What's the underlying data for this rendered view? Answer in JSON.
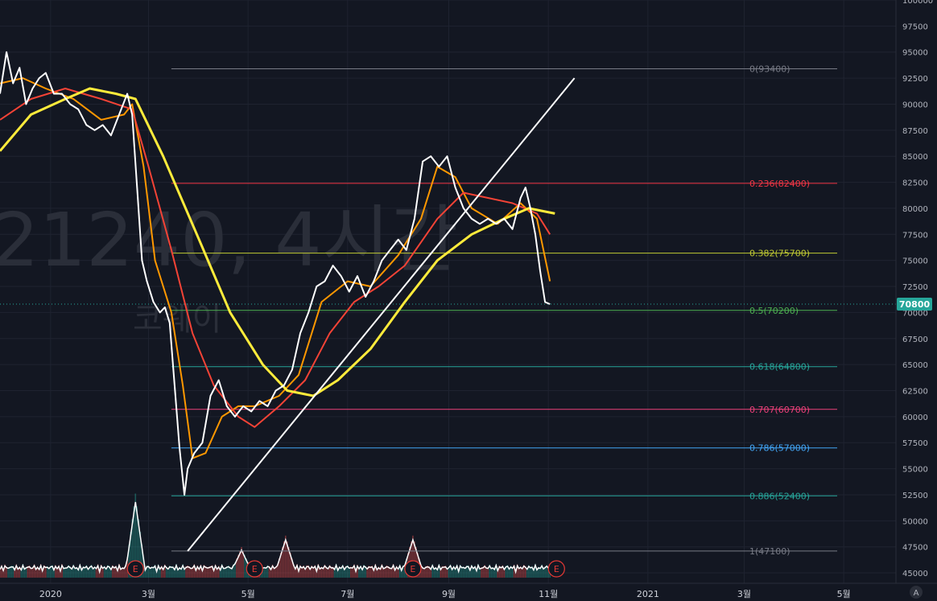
{
  "watermark": {
    "main": "21240, 4시간",
    "sub": "코웨이"
  },
  "price_tag": {
    "value": "70800",
    "color": "#26a69a"
  },
  "corner_button": "A",
  "earnings_marker": "E",
  "colors": {
    "background": "#131722",
    "grid": "#2a2e39",
    "price_line": "#ffffff",
    "ma_short": "#ff9800",
    "ma_mid": "#f44336",
    "ma_long": "#ffeb3b",
    "trendline": "#ffffff",
    "volume_up": "#ef5350",
    "volume_down": "#26a69a"
  },
  "chart_data": {
    "type": "line",
    "ylim": [
      44000,
      100000
    ],
    "y_ticks": [
      45000,
      47500,
      50000,
      52500,
      55000,
      57500,
      60000,
      62500,
      65000,
      67500,
      70000,
      72500,
      75000,
      77500,
      80000,
      82500,
      85000,
      87500,
      90000,
      92500,
      95000,
      97500,
      100000
    ],
    "x_axis_labels": [
      "2020",
      "3월",
      "5월",
      "7월",
      "9월",
      "11월",
      "2021",
      "3월",
      "5월"
    ],
    "x_axis_dates": [
      "2020-01-01",
      "2020-03-01",
      "2020-05-01",
      "2020-07-01",
      "2020-09-01",
      "2020-11-01",
      "2021-01-01",
      "2021-03-01",
      "2021-05-01"
    ],
    "x_range": [
      "2019-12-01",
      "2021-06-02"
    ],
    "grid": true,
    "series": [
      {
        "role": "price",
        "color": "#ffffff",
        "points": [
          [
            "2019-12-01",
            91000
          ],
          [
            "2019-12-05",
            95000
          ],
          [
            "2019-12-09",
            92000
          ],
          [
            "2019-12-13",
            93500
          ],
          [
            "2019-12-17",
            90000
          ],
          [
            "2019-12-21",
            91500
          ],
          [
            "2019-12-25",
            92500
          ],
          [
            "2019-12-29",
            93000
          ],
          [
            "2020-01-03",
            91000
          ],
          [
            "2020-01-08",
            91000
          ],
          [
            "2020-01-13",
            90000
          ],
          [
            "2020-01-18",
            89500
          ],
          [
            "2020-01-23",
            88000
          ],
          [
            "2020-01-28",
            87500
          ],
          [
            "2020-02-02",
            88000
          ],
          [
            "2020-02-07",
            87000
          ],
          [
            "2020-02-12",
            89000
          ],
          [
            "2020-02-17",
            91000
          ],
          [
            "2020-02-20",
            89000
          ],
          [
            "2020-02-23",
            82000
          ],
          [
            "2020-02-26",
            75000
          ],
          [
            "2020-02-29",
            73000
          ],
          [
            "2020-03-04",
            71000
          ],
          [
            "2020-03-08",
            70000
          ],
          [
            "2020-03-11",
            70500
          ],
          [
            "2020-03-14",
            69000
          ],
          [
            "2020-03-17",
            63000
          ],
          [
            "2020-03-20",
            57000
          ],
          [
            "2020-03-23",
            52500
          ],
          [
            "2020-03-25",
            55000
          ],
          [
            "2020-03-29",
            56500
          ],
          [
            "2020-04-03",
            57500
          ],
          [
            "2020-04-08",
            62000
          ],
          [
            "2020-04-13",
            63500
          ],
          [
            "2020-04-18",
            61000
          ],
          [
            "2020-04-23",
            60000
          ],
          [
            "2020-04-28",
            61000
          ],
          [
            "2020-05-03",
            60500
          ],
          [
            "2020-05-08",
            61500
          ],
          [
            "2020-05-13",
            61000
          ],
          [
            "2020-05-18",
            62500
          ],
          [
            "2020-05-23",
            63000
          ],
          [
            "2020-05-28",
            64500
          ],
          [
            "2020-06-02",
            68000
          ],
          [
            "2020-06-07",
            70000
          ],
          [
            "2020-06-12",
            72500
          ],
          [
            "2020-06-17",
            73000
          ],
          [
            "2020-06-22",
            74500
          ],
          [
            "2020-06-27",
            73500
          ],
          [
            "2020-07-02",
            72000
          ],
          [
            "2020-07-07",
            73500
          ],
          [
            "2020-07-12",
            71500
          ],
          [
            "2020-07-17",
            73000
          ],
          [
            "2020-07-22",
            75000
          ],
          [
            "2020-07-27",
            76000
          ],
          [
            "2020-08-01",
            77000
          ],
          [
            "2020-08-06",
            76000
          ],
          [
            "2020-08-11",
            79000
          ],
          [
            "2020-08-16",
            84500
          ],
          [
            "2020-08-21",
            85000
          ],
          [
            "2020-08-26",
            84000
          ],
          [
            "2020-08-31",
            85000
          ],
          [
            "2020-09-05",
            82000
          ],
          [
            "2020-09-10",
            80000
          ],
          [
            "2020-09-15",
            79000
          ],
          [
            "2020-09-20",
            78500
          ],
          [
            "2020-09-25",
            79000
          ],
          [
            "2020-09-30",
            78500
          ],
          [
            "2020-10-05",
            79000
          ],
          [
            "2020-10-10",
            78000
          ],
          [
            "2020-10-15",
            81000
          ],
          [
            "2020-10-18",
            82000
          ],
          [
            "2020-10-21",
            80000
          ],
          [
            "2020-10-24",
            77500
          ],
          [
            "2020-10-27",
            74000
          ],
          [
            "2020-10-30",
            71000
          ],
          [
            "2020-11-02",
            70800
          ]
        ]
      },
      {
        "role": "moving-average-short",
        "color": "#ff9800",
        "points": [
          [
            "2019-12-01",
            92000
          ],
          [
            "2019-12-15",
            92500
          ],
          [
            "2019-12-29",
            91500
          ],
          [
            "2020-01-15",
            90500
          ],
          [
            "2020-02-01",
            88500
          ],
          [
            "2020-02-15",
            89000
          ],
          [
            "2020-02-20",
            90000
          ],
          [
            "2020-02-27",
            84000
          ],
          [
            "2020-03-05",
            75000
          ],
          [
            "2020-03-15",
            70000
          ],
          [
            "2020-03-22",
            63000
          ],
          [
            "2020-03-28",
            56000
          ],
          [
            "2020-04-05",
            56500
          ],
          [
            "2020-04-15",
            60000
          ],
          [
            "2020-04-25",
            61000
          ],
          [
            "2020-05-05",
            61000
          ],
          [
            "2020-05-20",
            62000
          ],
          [
            "2020-06-01",
            64000
          ],
          [
            "2020-06-15",
            71000
          ],
          [
            "2020-07-01",
            73000
          ],
          [
            "2020-07-15",
            72500
          ],
          [
            "2020-08-01",
            75500
          ],
          [
            "2020-08-15",
            79000
          ],
          [
            "2020-08-25",
            84000
          ],
          [
            "2020-09-05",
            83000
          ],
          [
            "2020-09-15",
            80000
          ],
          [
            "2020-10-01",
            78500
          ],
          [
            "2020-10-15",
            80500
          ],
          [
            "2020-10-25",
            79000
          ],
          [
            "2020-11-02",
            73000
          ]
        ]
      },
      {
        "role": "moving-average-mid",
        "color": "#f44336",
        "points": [
          [
            "2019-12-01",
            88500
          ],
          [
            "2019-12-20",
            90500
          ],
          [
            "2020-01-10",
            91500
          ],
          [
            "2020-02-01",
            90500
          ],
          [
            "2020-02-20",
            89500
          ],
          [
            "2020-03-01",
            84000
          ],
          [
            "2020-03-15",
            76000
          ],
          [
            "2020-03-28",
            68000
          ],
          [
            "2020-04-10",
            63000
          ],
          [
            "2020-04-25",
            60000
          ],
          [
            "2020-05-05",
            59000
          ],
          [
            "2020-05-20",
            61000
          ],
          [
            "2020-06-05",
            63500
          ],
          [
            "2020-06-20",
            68000
          ],
          [
            "2020-07-05",
            71000
          ],
          [
            "2020-07-20",
            72500
          ],
          [
            "2020-08-05",
            74500
          ],
          [
            "2020-08-25",
            79000
          ],
          [
            "2020-09-10",
            81500
          ],
          [
            "2020-09-25",
            81000
          ],
          [
            "2020-10-10",
            80500
          ],
          [
            "2020-10-25",
            79500
          ],
          [
            "2020-11-02",
            77500
          ]
        ]
      },
      {
        "role": "moving-average-long",
        "color": "#ffeb3b",
        "points": [
          [
            "2019-12-01",
            85500
          ],
          [
            "2019-12-20",
            89000
          ],
          [
            "2020-01-10",
            90500
          ],
          [
            "2020-01-25",
            91500
          ],
          [
            "2020-02-10",
            91000
          ],
          [
            "2020-02-22",
            90500
          ],
          [
            "2020-03-10",
            85000
          ],
          [
            "2020-04-01",
            77000
          ],
          [
            "2020-04-20",
            70000
          ],
          [
            "2020-05-10",
            65000
          ],
          [
            "2020-05-25",
            62500
          ],
          [
            "2020-06-10",
            62000
          ],
          [
            "2020-06-25",
            63500
          ],
          [
            "2020-07-15",
            66500
          ],
          [
            "2020-08-05",
            71000
          ],
          [
            "2020-08-25",
            75000
          ],
          [
            "2020-09-15",
            77500
          ],
          [
            "2020-10-05",
            79000
          ],
          [
            "2020-10-20",
            80000
          ],
          [
            "2020-11-05",
            79500
          ]
        ]
      }
    ],
    "trendline": {
      "from": [
        "2020-03-25",
        47100
      ],
      "to": [
        "2020-11-17",
        92500
      ]
    },
    "fib_levels": [
      {
        "label": "0(93400)",
        "value": 93400,
        "color": "#787b86",
        "from": "2020-03-15"
      },
      {
        "label": "0.236(82400)",
        "value": 82400,
        "color": "#f23645",
        "from": "2020-03-15"
      },
      {
        "label": "0.382(75700)",
        "value": 75700,
        "color": "#c0ca33",
        "from": "2020-03-15"
      },
      {
        "label": "0.5(70200)",
        "value": 70200,
        "color": "#4caf50",
        "from": "2020-03-15"
      },
      {
        "label": "0.618(64800)",
        "value": 64800,
        "color": "#26a69a",
        "from": "2020-03-15"
      },
      {
        "label": "0.707(60700)",
        "value": 60700,
        "color": "#ec407a",
        "from": "2020-03-15"
      },
      {
        "label": "0.786(57000)",
        "value": 57000,
        "color": "#42a5f5",
        "from": "2020-03-15"
      },
      {
        "label": "0.886(52400)",
        "value": 52400,
        "color": "#26a69a",
        "from": "2020-03-15"
      },
      {
        "label": "1(47100)",
        "value": 47100,
        "color": "#787b86",
        "from": "2020-03-15"
      }
    ],
    "last_price_line": {
      "value": 70800,
      "color": "#26a69a"
    },
    "volume": {
      "spikes": [
        {
          "date": "2020-02-22",
          "value": 1.0
        },
        {
          "date": "2020-04-27",
          "value": 0.3
        },
        {
          "date": "2020-05-24",
          "value": 0.45
        },
        {
          "date": "2020-08-10",
          "value": 0.45
        }
      ],
      "up_color": "#ef5350",
      "down_color": "#26a69a"
    },
    "earnings_dates": [
      "2020-02-22",
      "2020-05-05",
      "2020-08-10",
      "2020-11-06"
    ]
  }
}
